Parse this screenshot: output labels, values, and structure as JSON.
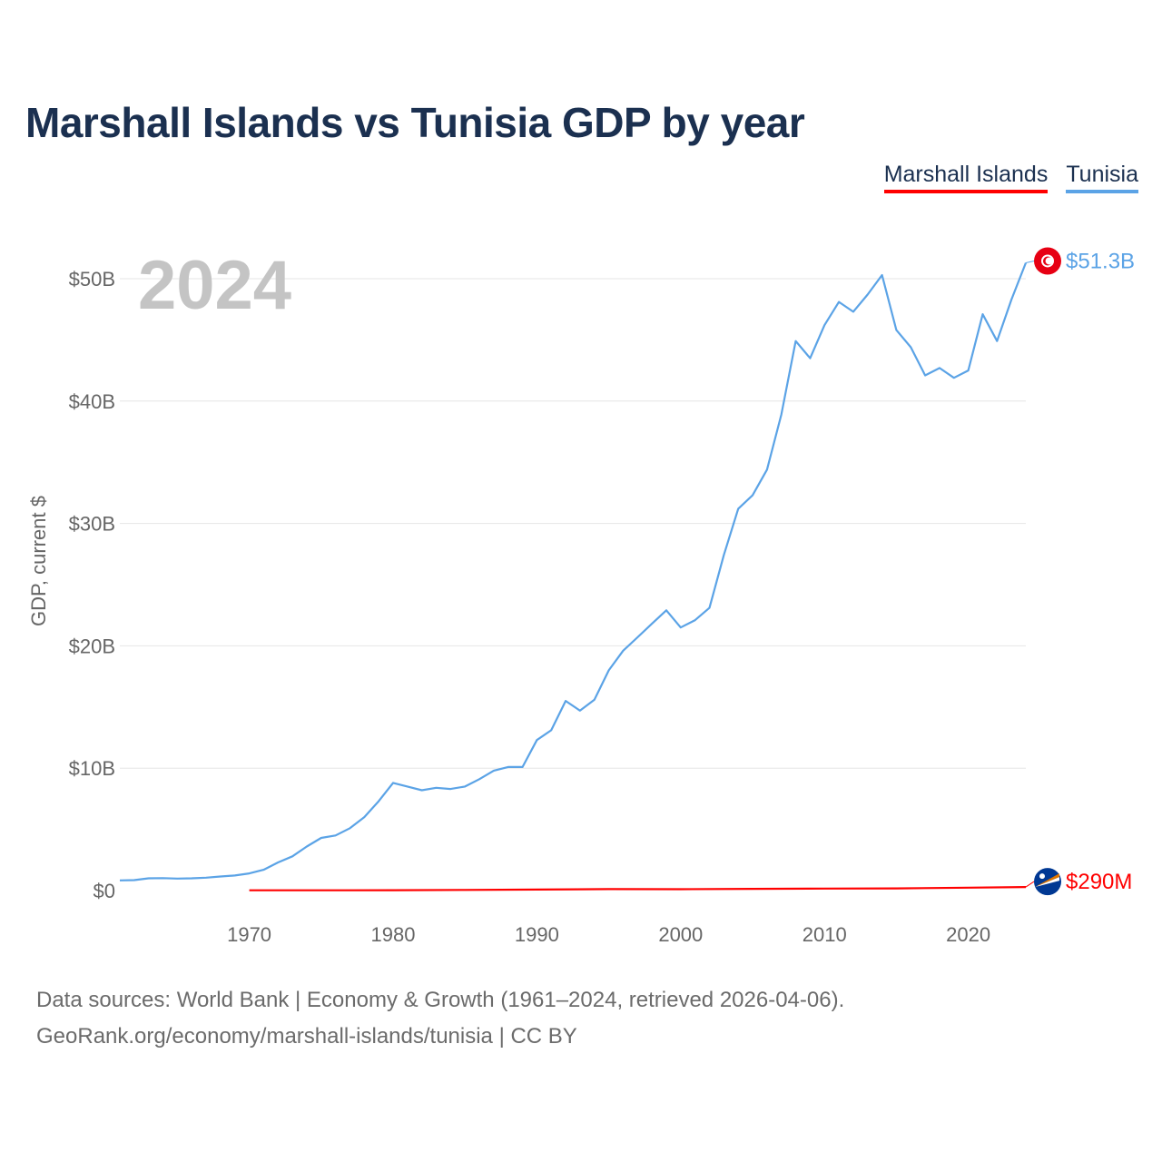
{
  "title": "Marshall Islands vs Tunisia GDP by year",
  "legend": [
    {
      "name": "Marshall Islands",
      "color": "#ff0000"
    },
    {
      "name": "Tunisia",
      "color": "#5ba3e6"
    }
  ],
  "footer": {
    "line1": "Data sources: World Bank | Economy & Growth (1961–2024, retrieved 2026-04-06).",
    "line2": "GeoRank.org/economy/marshall-islands/tunisia | CC BY"
  },
  "chart_data": {
    "type": "line",
    "title": "Marshall Islands vs Tunisia GDP by year",
    "ylabel": "GDP, current $",
    "xlabel": "",
    "xlim": [
      1961,
      2024
    ],
    "ylim": [
      0,
      53
    ],
    "y_ticks": [
      {
        "value": 0,
        "label": "$0"
      },
      {
        "value": 10,
        "label": "$10B"
      },
      {
        "value": 20,
        "label": "$20B"
      },
      {
        "value": 30,
        "label": "$30B"
      },
      {
        "value": 40,
        "label": "$40B"
      },
      {
        "value": 50,
        "label": "$50B"
      }
    ],
    "x_ticks": [
      1970,
      1980,
      1990,
      2000,
      2010,
      2020
    ],
    "year_label": "2024",
    "units": "billions of current US$",
    "series": [
      {
        "name": "Tunisia",
        "color": "#5ba3e6",
        "end_label": "$51.3B",
        "flag": "tunisia-flag-icon",
        "x": [
          1961,
          1962,
          1963,
          1964,
          1965,
          1966,
          1967,
          1968,
          1969,
          1970,
          1971,
          1972,
          1973,
          1974,
          1975,
          1976,
          1977,
          1978,
          1979,
          1980,
          1981,
          1982,
          1983,
          1984,
          1985,
          1986,
          1987,
          1988,
          1989,
          1990,
          1991,
          1992,
          1993,
          1994,
          1995,
          1996,
          1997,
          1998,
          1999,
          2000,
          2001,
          2002,
          2003,
          2004,
          2005,
          2006,
          2007,
          2008,
          2009,
          2010,
          2011,
          2012,
          2013,
          2014,
          2015,
          2016,
          2017,
          2018,
          2019,
          2020,
          2021,
          2022,
          2023,
          2024
        ],
        "values": [
          0.83,
          0.85,
          1.0,
          1.02,
          0.98,
          1.0,
          1.05,
          1.15,
          1.23,
          1.4,
          1.7,
          2.3,
          2.8,
          3.6,
          4.3,
          4.5,
          5.1,
          6.0,
          7.3,
          8.8,
          8.5,
          8.2,
          8.4,
          8.3,
          8.5,
          9.1,
          9.8,
          10.1,
          10.1,
          12.3,
          13.1,
          15.5,
          14.7,
          15.6,
          18.0,
          19.6,
          20.7,
          21.8,
          22.9,
          21.5,
          22.1,
          23.1,
          27.4,
          31.2,
          32.3,
          34.4,
          38.9,
          44.9,
          43.5,
          46.2,
          48.1,
          47.3,
          48.7,
          50.3,
          45.8,
          44.4,
          42.1,
          42.7,
          41.9,
          42.5,
          47.1,
          44.9,
          48.3,
          51.3
        ]
      },
      {
        "name": "Marshall Islands",
        "color": "#ff0000",
        "end_label": "$290M",
        "flag": "marshall-islands-flag-icon",
        "x": [
          1970,
          1975,
          1980,
          1985,
          1990,
          1995,
          2000,
          2005,
          2010,
          2015,
          2020,
          2024
        ],
        "values": [
          0.02,
          0.025,
          0.03,
          0.05,
          0.08,
          0.12,
          0.11,
          0.14,
          0.16,
          0.18,
          0.24,
          0.29
        ]
      }
    ]
  }
}
